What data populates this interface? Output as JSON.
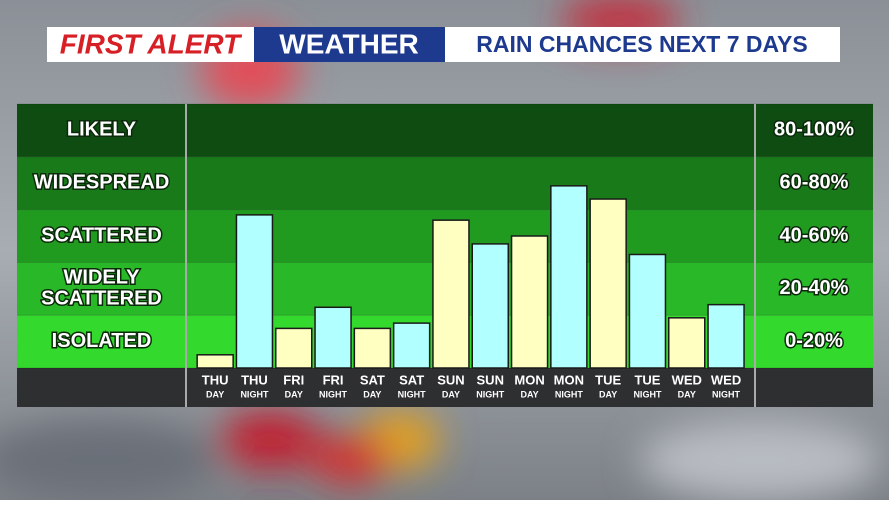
{
  "chart_data": {
    "type": "bar",
    "brand": "FIRST ALERT",
    "segment": "WEATHER",
    "title": "RAIN CHANCES NEXT 7 DAYS",
    "categories": [
      [
        "THU",
        "DAY"
      ],
      [
        "THU",
        "NIGHT"
      ],
      [
        "FRI",
        "DAY"
      ],
      [
        "FRI",
        "NIGHT"
      ],
      [
        "SAT",
        "DAY"
      ],
      [
        "SAT",
        "NIGHT"
      ],
      [
        "SUN",
        "DAY"
      ],
      [
        "SUN",
        "NIGHT"
      ],
      [
        "MON",
        "DAY"
      ],
      [
        "MON",
        "NIGHT"
      ],
      [
        "TUE",
        "DAY"
      ],
      [
        "TUE",
        "NIGHT"
      ],
      [
        "WED",
        "DAY"
      ],
      [
        "WED",
        "NIGHT"
      ]
    ],
    "values": [
      5,
      58,
      15,
      23,
      15,
      17,
      56,
      47,
      50,
      69,
      64,
      43,
      19,
      24
    ],
    "colors": [
      "#ffffc2",
      "#b2ffff",
      "#ffffc2",
      "#b2ffff",
      "#ffffc2",
      "#b2ffff",
      "#ffffc2",
      "#b2ffff",
      "#ffffc2",
      "#b2ffff",
      "#ffffc2",
      "#b2ffff",
      "#ffffc2",
      "#b2ffff"
    ],
    "ylim": [
      0,
      100
    ],
    "yticks": [
      0,
      20,
      40,
      60,
      80,
      100
    ],
    "bands": [
      {
        "label": [
          "ISOLATED"
        ],
        "range": "0-20%",
        "color": "#33d92c"
      },
      {
        "label": [
          "WIDELY",
          "SCATTERED"
        ],
        "range": "20-40%",
        "color": "#29b827"
      },
      {
        "label": [
          "SCATTERED"
        ],
        "range": "40-60%",
        "color": "#219a20"
      },
      {
        "label": [
          "WIDESPREAD"
        ],
        "range": "60-80%",
        "color": "#197a1a"
      },
      {
        "label": [
          "LIKELY"
        ],
        "range": "80-100%",
        "color": "#0f4c12"
      }
    ]
  }
}
